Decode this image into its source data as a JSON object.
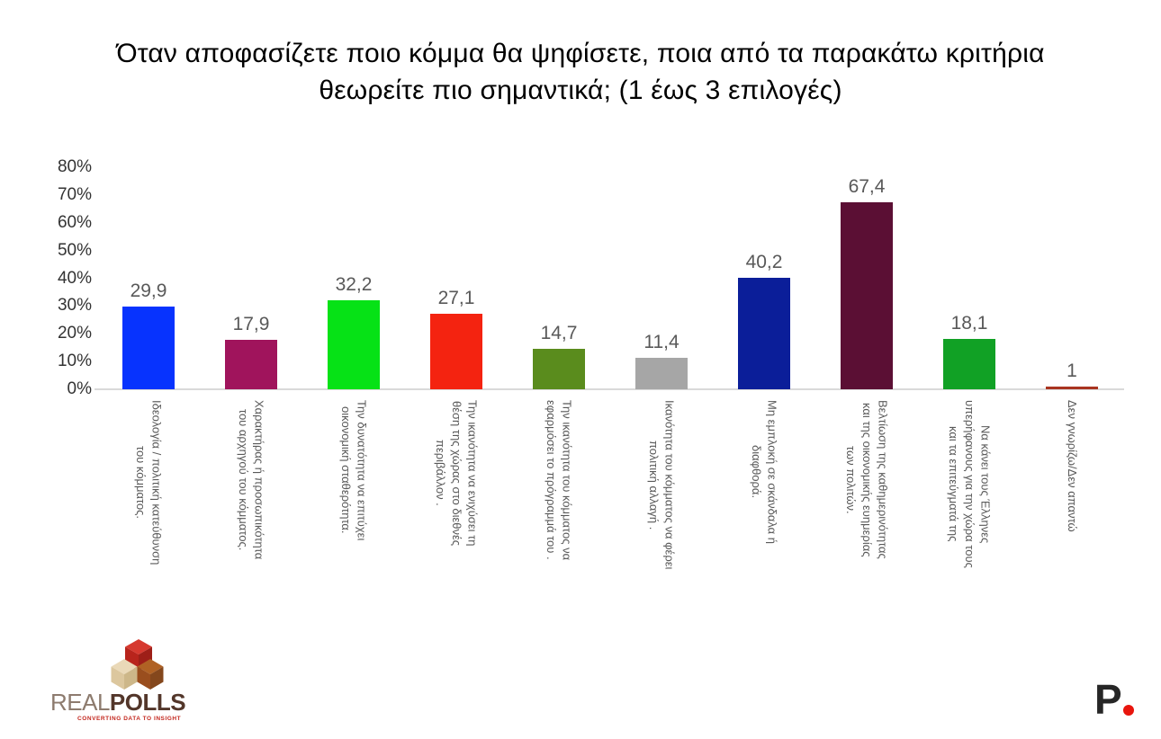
{
  "title": "Όταν αποφασίζετε ποιο κόμμα θα ψηφίσετε, ποια από τα παρακάτω κριτήρια\nθεωρείτε πιο σημαντικά; (1 έως 3 επιλογές)",
  "chart_data": {
    "type": "bar",
    "title": "Όταν αποφασίζετε ποιο κόμμα θα ψηφίσετε, ποια από τα παρακάτω κριτήρια θεωρείτε πιο σημαντικά; (1 έως 3 επιλογές)",
    "categories": [
      "Ιδεολογία / πολιτική κατεύθυνση\nτου κόμματος.",
      "Χαρακτήρας ή προσωπικότητα\nτου αρχηγού του κόμματος.",
      "Την δυνατότητα να επιτύχει\nοικονομική σταθερότητα.",
      "Την ικανότητα να ενιχύσει τη\nθέση της χώρας στο διεθνές\nπεριβάλλον .",
      "Την ικανότητα του κόμματος να\nεφαρμόσει το πρόγραμμά του .",
      "Ικανότητα του κόμματος να φέρει\nπολιτική αλλαγή .",
      "Μη εμπλοκή σε σκάνδαλα ή\nδιαφθορά.",
      "Βελτίωση της καθημερινότητας\nκαι της οικονομικής ευημερίας\nτων πολιτών.",
      "Να κάνει τους Έλληνες\nυπερήφανους για την χώρα τους\nκαι τα επιτεύγματά της",
      "Δεν γνωρίζω/Δεν απαντώ"
    ],
    "values": [
      29.9,
      17.9,
      32.2,
      27.1,
      14.7,
      11.4,
      40.2,
      67.4,
      18.1,
      1
    ],
    "value_labels": [
      "29,9",
      "17,9",
      "32,2",
      "27,1",
      "14,7",
      "11,4",
      "40,2",
      "67,4",
      "18,1",
      "1"
    ],
    "bar_colors": [
      "#0733fe",
      "#a0145c",
      "#06e216",
      "#f42310",
      "#5a8c1d",
      "#a6a6a6",
      "#0b1e99",
      "#5b0f34",
      "#11a125",
      "#a93420"
    ],
    "ylim": [
      0,
      80
    ],
    "ytick_step": 10,
    "ytick_labels": [
      "80%",
      "70%",
      "60%",
      "50%",
      "40%",
      "30%",
      "20%",
      "10%",
      "0%"
    ],
    "xlabel": "",
    "ylabel": "",
    "grid": false,
    "legend": false
  },
  "branding": {
    "realpolls": {
      "name_part1": "REAL",
      "name_part2": "POLLS",
      "tagline": "CONVERTING DATA TO INSIGHT",
      "cube_red": "#cf332a",
      "cube_red_dark": "#9e1f18",
      "cube_tan": "#ead9b8",
      "cube_tan_dark": "#cdb789",
      "cube_brown": "#b06224",
      "cube_brown_dark": "#84471c"
    },
    "p_logo": {
      "letter": "P",
      "dot_color": "#e8150d"
    }
  }
}
